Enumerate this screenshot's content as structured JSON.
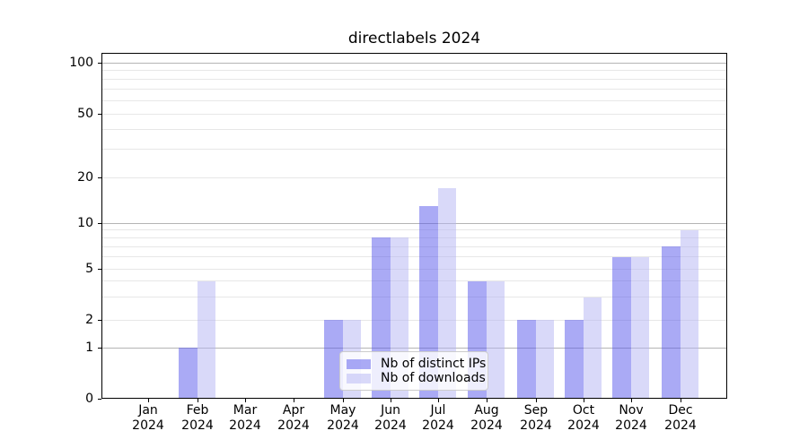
{
  "chart_data": {
    "type": "bar",
    "title": "directlabels 2024",
    "categories": [
      "Jan",
      "Feb",
      "Mar",
      "Apr",
      "May",
      "Jun",
      "Jul",
      "Aug",
      "Sep",
      "Oct",
      "Nov",
      "Dec"
    ],
    "category_year": "2024",
    "series": [
      {
        "name": "Nb of distinct IPs",
        "color": "rgba(85,85,235,0.5)",
        "values": [
          0,
          1,
          0,
          0,
          2,
          8,
          13,
          4,
          2,
          2,
          6,
          7
        ]
      },
      {
        "name": "Nb of downloads",
        "color": "rgba(179,179,243,0.5)",
        "values": [
          0,
          4,
          0,
          0,
          2,
          8,
          17,
          4,
          2,
          3,
          6,
          9
        ]
      }
    ],
    "y_axis": {
      "scale": "log-like",
      "tick_values": [
        0,
        1,
        2,
        5,
        10,
        20,
        50,
        100
      ],
      "gridlines_major": [
        1,
        10,
        100
      ],
      "gridlines_minor": [
        2,
        3,
        4,
        5,
        6,
        7,
        8,
        9,
        20,
        30,
        40,
        50,
        60,
        70,
        80,
        90
      ],
      "ylim": [
        0,
        116
      ]
    },
    "x_axis": {
      "tick_label_format": "month over year"
    },
    "legend": {
      "position": "lower-center-inside"
    },
    "colors": {
      "bar_distinct_ips": "rgba(85,85,235,0.5)",
      "bar_downloads": "rgba(179,179,243,0.5)",
      "grid_major": "#b4b4b4",
      "grid_minor": "#e7e7e7",
      "spine": "#000000",
      "legend_border": "#cccccc"
    }
  }
}
